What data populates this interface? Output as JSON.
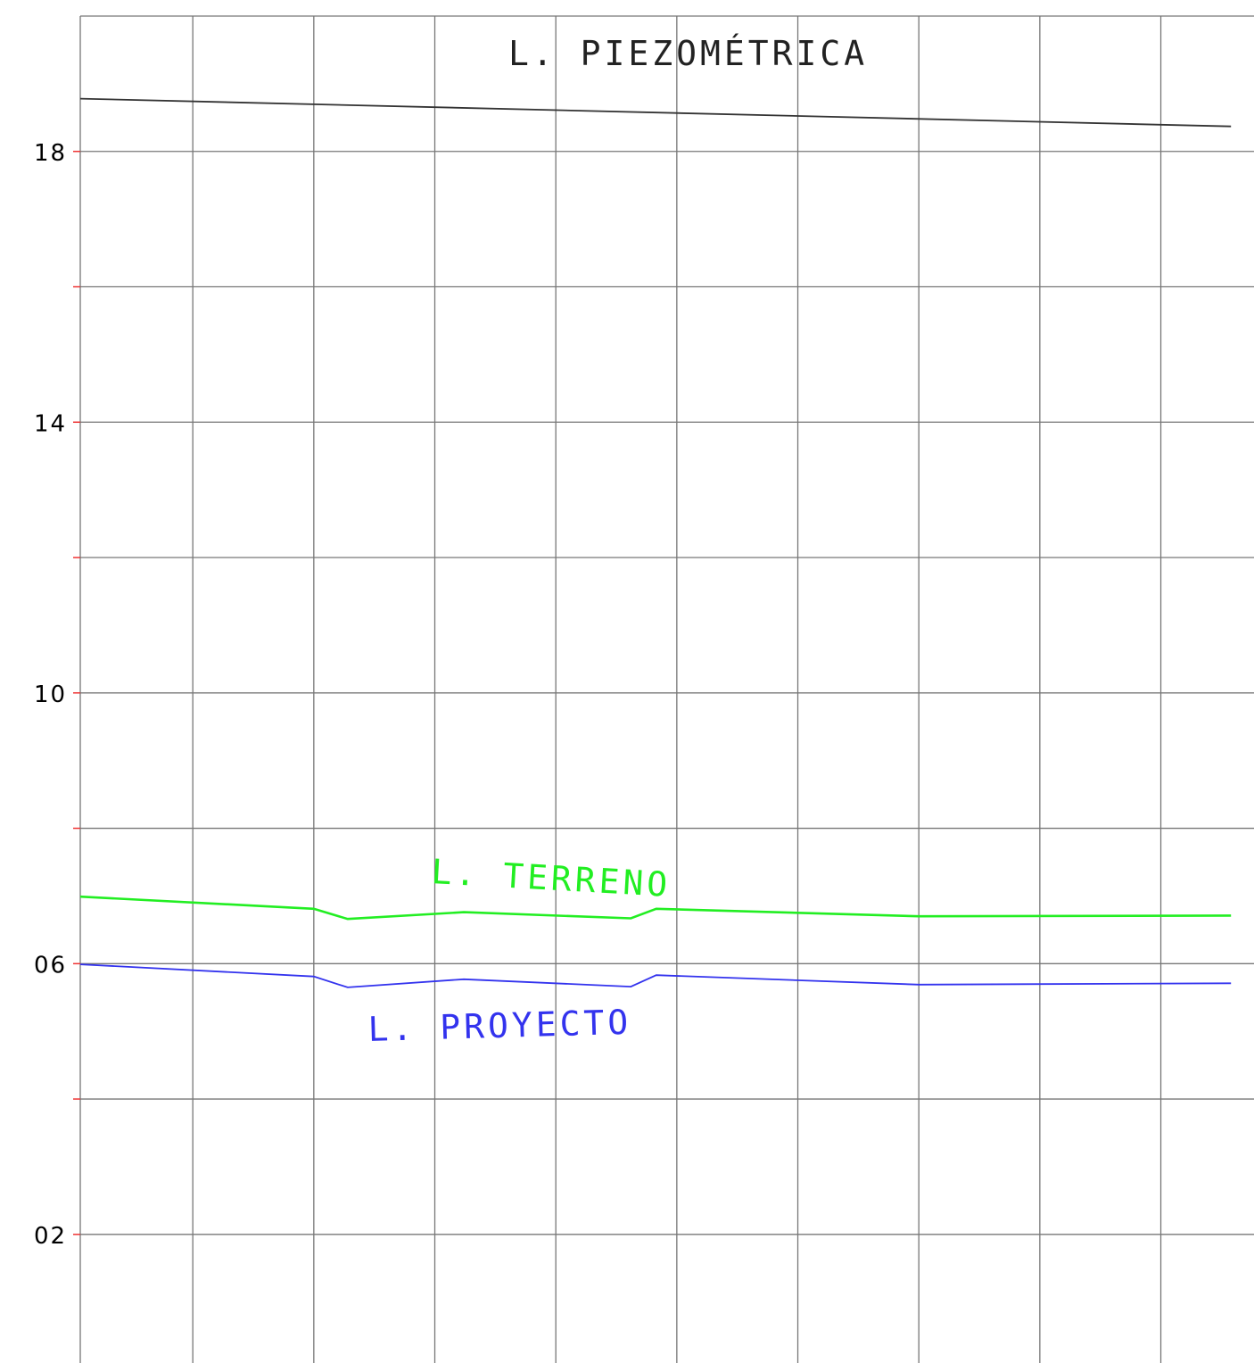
{
  "chart_data": {
    "type": "line",
    "title": "",
    "xlabel": "",
    "ylabel": "",
    "ylim": [
      0.1,
      20.0
    ],
    "y_ticks": [
      {
        "value": 18,
        "label": "18"
      },
      {
        "value": 14,
        "label": "14"
      },
      {
        "value": 10,
        "label": "10"
      },
      {
        "value": 6,
        "label": "06"
      },
      {
        "value": 2,
        "label": "02"
      }
    ],
    "y_minor_ticks": [
      16,
      12,
      8,
      4
    ],
    "x_gridlines": [
      0,
      1,
      2,
      3,
      4,
      5,
      6,
      7,
      8
    ],
    "xlim": [
      -0.93,
      8.77
    ],
    "grid": true,
    "series": [
      {
        "name": "L. PIEZOMÉTRICA",
        "color": "#333333",
        "x": [
          -0.93,
          8.58
        ],
        "y": [
          18.78,
          18.37
        ]
      },
      {
        "name": "L. TERRENO",
        "color": "#22ee22",
        "x": [
          -0.93,
          1.0,
          1.28,
          2.24,
          3.62,
          3.83,
          6.0,
          8.58
        ],
        "y": [
          6.99,
          6.81,
          6.66,
          6.76,
          6.67,
          6.81,
          6.7,
          6.71
        ]
      },
      {
        "name": "L. PROYECTO",
        "color": "#3333ee",
        "x": [
          -0.93,
          1.0,
          1.28,
          2.24,
          3.62,
          3.83,
          6.0,
          8.58
        ],
        "y": [
          5.99,
          5.81,
          5.65,
          5.77,
          5.66,
          5.83,
          5.69,
          5.71
        ]
      }
    ]
  }
}
